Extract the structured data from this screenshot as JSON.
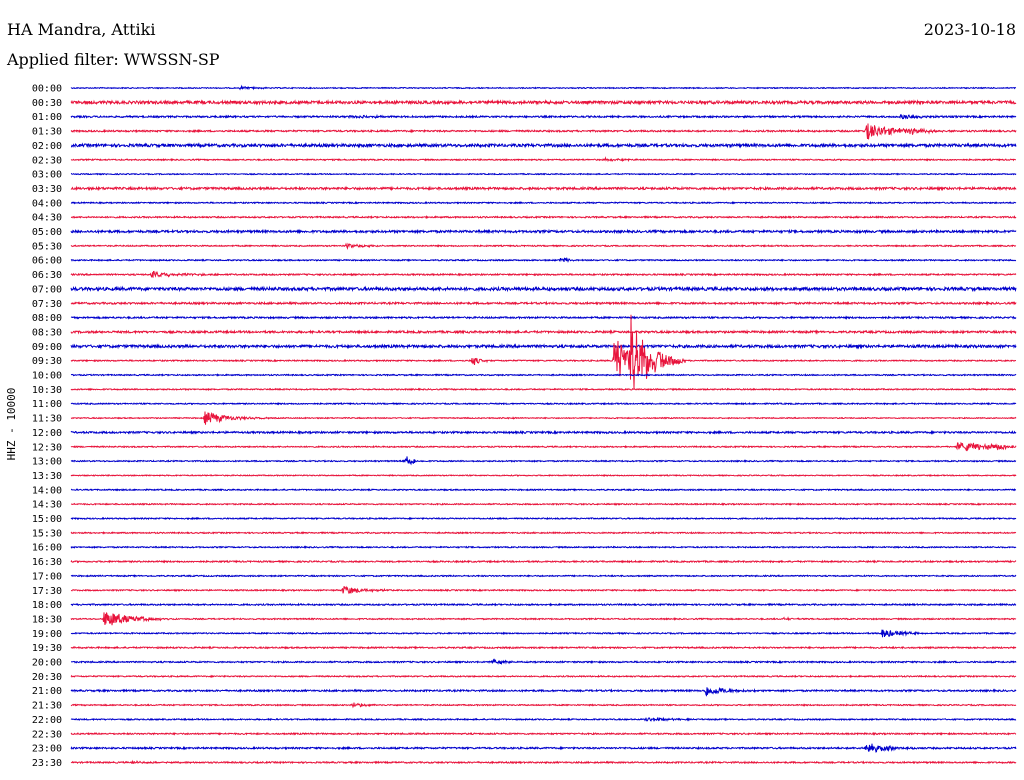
{
  "header": {
    "station": "HA Mandra, Attiki",
    "date": "2023-10-18",
    "filter": "Applied filter: WWSSN-SP"
  },
  "colors": {
    "even_trace": "#0000cc",
    "odd_trace": "#e8143c",
    "text": "#000000",
    "background": "#ffffff"
  },
  "chart_data": {
    "type": "line",
    "subtype": "helicorder",
    "ylabel": "HHZ - 10000",
    "xlabel": "",
    "row_minutes": 30,
    "row_labels": [
      "00:00",
      "00:30",
      "01:00",
      "01:30",
      "02:00",
      "02:30",
      "03:00",
      "03:30",
      "04:00",
      "04:30",
      "05:00",
      "05:30",
      "06:00",
      "06:30",
      "07:00",
      "07:30",
      "08:00",
      "08:30",
      "09:00",
      "09:30",
      "10:00",
      "10:30",
      "11:00",
      "11:30",
      "12:00",
      "12:30",
      "13:00",
      "13:30",
      "14:00",
      "14:30",
      "15:00",
      "15:30",
      "16:00",
      "16:30",
      "17:00",
      "17:30",
      "18:00",
      "18:30",
      "19:00",
      "19:30",
      "20:00",
      "20:30",
      "21:00",
      "21:30",
      "22:00",
      "22:30",
      "23:00",
      "23:30"
    ],
    "noise_level": [
      0.5,
      1.4,
      0.8,
      0.8,
      1.4,
      0.6,
      0.5,
      1.1,
      0.6,
      0.7,
      1.1,
      0.6,
      0.6,
      0.7,
      1.5,
      0.9,
      0.8,
      1.0,
      1.3,
      0.6,
      0.6,
      0.6,
      0.6,
      0.5,
      0.9,
      0.6,
      0.6,
      0.5,
      0.6,
      0.6,
      0.6,
      0.6,
      0.6,
      0.7,
      0.6,
      0.6,
      0.7,
      0.6,
      0.6,
      0.7,
      0.7,
      0.6,
      0.8,
      0.6,
      0.6,
      0.7,
      0.8,
      0.7
    ],
    "events": [
      {
        "row": 0,
        "minute": 5.3,
        "amplitude": 1.5,
        "duration": 0.6
      },
      {
        "row": 2,
        "minute": 8.8,
        "amplitude": 1.5,
        "duration": 1.0
      },
      {
        "row": 2,
        "minute": 26.3,
        "amplitude": 2.5,
        "duration": 0.6
      },
      {
        "row": 3,
        "minute": 25.2,
        "amplitude": 9.0,
        "duration": 0.8
      },
      {
        "row": 3,
        "minute": 26.5,
        "amplitude": 3.0,
        "duration": 0.6
      },
      {
        "row": 5,
        "minute": 16.9,
        "amplitude": 1.5,
        "duration": 0.5
      },
      {
        "row": 11,
        "minute": 8.7,
        "amplitude": 2.5,
        "duration": 0.5
      },
      {
        "row": 12,
        "minute": 15.5,
        "amplitude": 4.0,
        "duration": 0.2
      },
      {
        "row": 13,
        "minute": 2.5,
        "amplitude": 3.5,
        "duration": 0.8
      },
      {
        "row": 19,
        "minute": 12.7,
        "amplitude": 7.0,
        "duration": 0.2
      },
      {
        "row": 19,
        "minute": 17.2,
        "amplitude": 30.0,
        "duration": 0.5
      },
      {
        "row": 19,
        "minute": 17.7,
        "amplitude": 45.0,
        "duration": 0.6
      },
      {
        "row": 23,
        "minute": 4.2,
        "amplitude": 7.0,
        "duration": 0.7
      },
      {
        "row": 23,
        "minute": 13.5,
        "amplitude": 1.5,
        "duration": 0.3
      },
      {
        "row": 25,
        "minute": 28.1,
        "amplitude": 4.5,
        "duration": 2.0
      },
      {
        "row": 26,
        "minute": 10.6,
        "amplitude": 9.0,
        "duration": 0.2
      },
      {
        "row": 35,
        "minute": 8.6,
        "amplitude": 5.0,
        "duration": 0.6
      },
      {
        "row": 37,
        "minute": 1.0,
        "amplitude": 9.0,
        "duration": 0.8
      },
      {
        "row": 37,
        "minute": 22.6,
        "amplitude": 1.5,
        "duration": 0.3
      },
      {
        "row": 38,
        "minute": 25.7,
        "amplitude": 5.0,
        "duration": 0.6
      },
      {
        "row": 40,
        "minute": 13.3,
        "amplitude": 3.0,
        "duration": 0.4
      },
      {
        "row": 42,
        "minute": 20.1,
        "amplitude": 6.0,
        "duration": 0.6
      },
      {
        "row": 43,
        "minute": 8.9,
        "amplitude": 2.5,
        "duration": 0.5
      },
      {
        "row": 44,
        "minute": 18.2,
        "amplitude": 3.0,
        "duration": 0.5
      },
      {
        "row": 46,
        "minute": 25.2,
        "amplitude": 6.0,
        "duration": 0.6
      },
      {
        "row": 47,
        "minute": 1.9,
        "amplitude": 1.5,
        "duration": 0.4
      }
    ]
  }
}
